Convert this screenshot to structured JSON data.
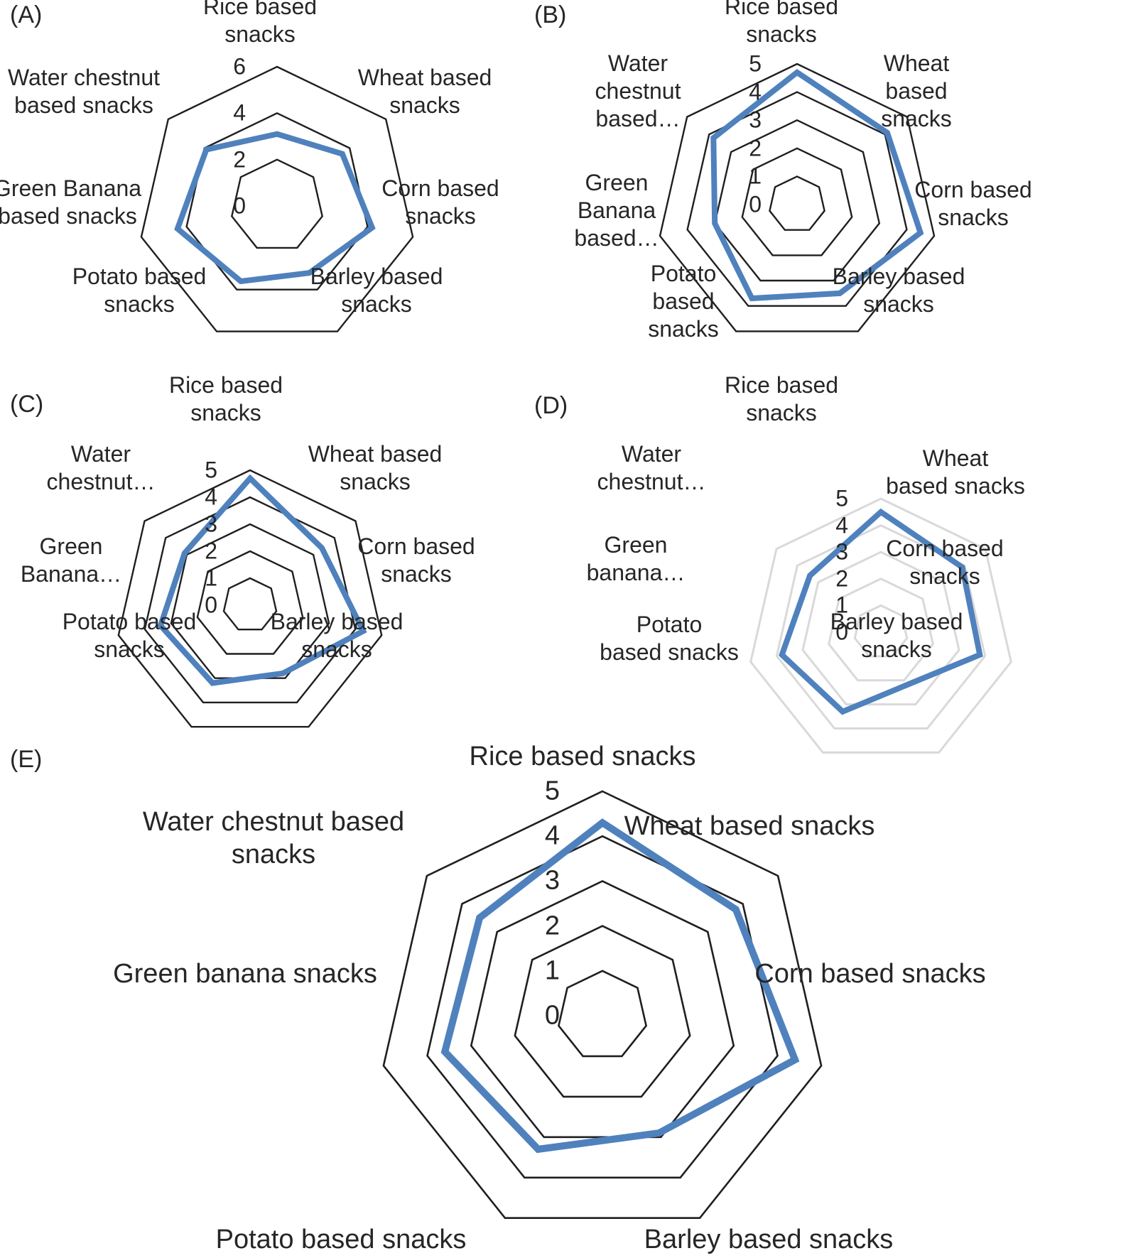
{
  "chart_data": [
    {
      "panel_label": "(A)",
      "type": "radar",
      "categories": [
        "Rice based snacks",
        "Wheat based snacks",
        "Corn based snacks",
        "Barley based snacks",
        "Potato based snacks",
        "Green Banana based snacks",
        "Water chestnut based snacks"
      ],
      "values": [
        3.1,
        3.6,
        4.2,
        3.2,
        3.6,
        4.4,
        3.9
      ],
      "scale": {
        "min": 0,
        "max": 6,
        "grid_rings": [
          2,
          4,
          6
        ]
      },
      "tick_labels": [
        "6",
        "4",
        "2",
        "0"
      ],
      "axis_labels_display": [
        [
          "Rice based",
          "snacks"
        ],
        [
          "Wheat based",
          "snacks"
        ],
        [
          "Corn based",
          "snacks"
        ],
        [
          "Barley based",
          "snacks"
        ],
        [
          "Potato based",
          "snacks"
        ],
        [
          "Green Banana",
          "based snacks"
        ],
        [
          "Water chestnut",
          "based snacks"
        ]
      ],
      "grid_color": "#1f1f1f",
      "series_color": "#4f81bd",
      "legend": "none"
    },
    {
      "panel_label": "(B)",
      "type": "radar",
      "categories": [
        "Rice based snacks",
        "Wheat based snacks",
        "Corn based snacks",
        "Barley based snacks",
        "Potato based snacks",
        "Green Banana based snacks",
        "Water chestnut based snacks"
      ],
      "values": [
        4.7,
        4.1,
        4.5,
        3.5,
        3.7,
        3.0,
        3.8
      ],
      "scale": {
        "min": 0,
        "max": 5,
        "grid_rings": [
          1,
          2,
          3,
          4,
          5
        ]
      },
      "tick_labels": [
        "5",
        "4",
        "3",
        "2",
        "1",
        "0"
      ],
      "axis_labels_display": [
        [
          "Rice based",
          "snacks"
        ],
        [
          "Wheat",
          "based",
          "snacks"
        ],
        [
          "Corn based",
          "snacks"
        ],
        [
          "Barley based",
          "snacks"
        ],
        [
          "Potato",
          "based",
          "snacks"
        ],
        [
          "Green",
          "Banana",
          "based…"
        ],
        [
          "Water",
          "chestnut",
          "based…"
        ]
      ],
      "grid_color": "#1f1f1f",
      "series_color": "#4f81bd",
      "legend": "none"
    },
    {
      "panel_label": "(C)",
      "type": "radar",
      "categories": [
        "Rice based snacks",
        "Wheat based snacks",
        "Corn based snacks",
        "Barley based snacks",
        "Potato based snacks",
        "Green Banana based snacks",
        "Water chestnut based snacks"
      ],
      "values": [
        4.7,
        3.4,
        4.3,
        2.8,
        3.2,
        3.4,
        3.1
      ],
      "scale": {
        "min": 0,
        "max": 5,
        "grid_rings": [
          1,
          2,
          3,
          4,
          5
        ]
      },
      "tick_labels": [
        "5",
        "4",
        "3",
        "2",
        "1",
        "0"
      ],
      "axis_labels_display": [
        [
          "Rice based",
          "snacks"
        ],
        [
          "Wheat based",
          "snacks"
        ],
        [
          "Corn based",
          "snacks"
        ],
        [
          "Barley based",
          "snacks"
        ],
        [
          "Potato based",
          "snacks"
        ],
        [
          "Green",
          "Banana…"
        ],
        [
          "Water",
          "chestnut…"
        ]
      ],
      "grid_color": "#1f1f1f",
      "series_color": "#4f81bd",
      "legend": "none"
    },
    {
      "panel_label": "(D)",
      "type": "radar",
      "categories": [
        "Rice based snacks",
        "Wheat based snacks",
        "Corn based snacks",
        "Barley based snacks",
        "Potato based snacks",
        "Green banana based snacks",
        "Water chestnut based snacks"
      ],
      "values": [
        4.5,
        3.9,
        3.8,
        2.2,
        3.3,
        3.8,
        3.4
      ],
      "scale": {
        "min": 0,
        "max": 5,
        "grid_rings": [
          1,
          2,
          3,
          4,
          5
        ]
      },
      "tick_labels": [
        "5",
        "4",
        "3",
        "2",
        "1",
        "0"
      ],
      "axis_labels_display": [
        [
          "Rice based",
          "snacks"
        ],
        [
          "Wheat",
          "based snacks"
        ],
        [
          "Corn based",
          "snacks"
        ],
        [
          "Barley based",
          "snacks"
        ],
        [
          "Potato",
          "based snacks"
        ],
        [
          "Green",
          "banana…"
        ],
        [
          "Water",
          "chestnut…"
        ]
      ],
      "grid_color": "#d9d9d9",
      "series_color": "#4f81bd",
      "legend": "none"
    },
    {
      "panel_label": "(E)",
      "type": "radar",
      "categories": [
        "Rice based snacks",
        "Wheat based snacks",
        "Corn based snacks",
        "Barley based snacks",
        "Potato based snacks",
        "Green banana snacks",
        "Water chestnut based snacks"
      ],
      "values": [
        4.3,
        3.8,
        4.4,
        2.9,
        3.3,
        3.6,
        3.5
      ],
      "scale": {
        "min": 0,
        "max": 5,
        "grid_rings": [
          1,
          2,
          3,
          4,
          5
        ]
      },
      "tick_labels": [
        "5",
        "4",
        "3",
        "2",
        "1",
        "0"
      ],
      "axis_labels_display": [
        [
          "Rice based snacks"
        ],
        [
          "Wheat based snacks"
        ],
        [
          "Corn based snacks"
        ],
        [
          "Barley based snacks"
        ],
        [
          "Potato based snacks"
        ],
        [
          "Green banana snacks"
        ],
        [
          "Water chestnut based",
          "snacks"
        ]
      ],
      "grid_color": "#1f1f1f",
      "series_color": "#4f81bd",
      "legend": "none"
    }
  ]
}
